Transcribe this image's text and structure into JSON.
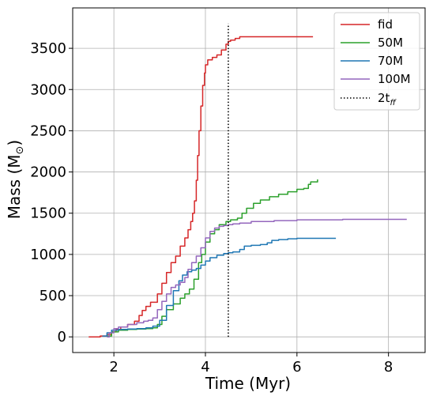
{
  "chart_data": {
    "type": "line",
    "xlabel": "Time (Myr)",
    "ylabel_main": "Mass (M",
    "ylabel_sub": "⊙",
    "ylabel_end": ")",
    "xlim": [
      1.1,
      8.8
    ],
    "ylim": [
      -190,
      3990
    ],
    "xticks": [
      2,
      4,
      6,
      8
    ],
    "yticks": [
      0,
      500,
      1000,
      1500,
      2000,
      2500,
      3000,
      3500
    ],
    "grid": true,
    "legend_position": "top-right",
    "series": [
      {
        "name": "fid",
        "color": "#d62728",
        "x": [
          1.45,
          1.7,
          1.85,
          1.95,
          2.05,
          2.15,
          2.3,
          2.45,
          2.55,
          2.62,
          2.7,
          2.8,
          2.95,
          3.05,
          3.15,
          3.25,
          3.35,
          3.45,
          3.55,
          3.62,
          3.68,
          3.72,
          3.76,
          3.8,
          3.83,
          3.86,
          3.9,
          3.94,
          3.98,
          4.0,
          4.05,
          4.15,
          4.25,
          4.35,
          4.45,
          4.5,
          4.55,
          4.65,
          4.75,
          5.0,
          5.5,
          6.0,
          6.35
        ],
        "y": [
          0,
          10,
          30,
          60,
          90,
          120,
          150,
          190,
          260,
          320,
          370,
          420,
          520,
          650,
          780,
          900,
          980,
          1100,
          1200,
          1300,
          1400,
          1500,
          1650,
          1900,
          2200,
          2500,
          2800,
          3050,
          3200,
          3300,
          3360,
          3390,
          3420,
          3480,
          3550,
          3585,
          3600,
          3620,
          3640,
          3640,
          3640,
          3640,
          3640
        ]
      },
      {
        "name": "50M",
        "color": "#2ca02c",
        "x": [
          1.85,
          1.95,
          2.1,
          2.3,
          2.5,
          2.7,
          2.85,
          2.95,
          3.05,
          3.15,
          3.3,
          3.45,
          3.55,
          3.65,
          3.75,
          3.85,
          3.92,
          4.0,
          4.1,
          4.2,
          4.3,
          4.45,
          4.55,
          4.7,
          4.8,
          4.9,
          5.05,
          5.2,
          5.4,
          5.6,
          5.8,
          6.0,
          6.15,
          6.25,
          6.3,
          6.45
        ],
        "y": [
          10,
          60,
          80,
          90,
          95,
          100,
          110,
          150,
          250,
          330,
          400,
          470,
          520,
          580,
          700,
          900,
          1000,
          1150,
          1250,
          1300,
          1360,
          1400,
          1420,
          1440,
          1500,
          1560,
          1620,
          1660,
          1700,
          1730,
          1760,
          1790,
          1800,
          1850,
          1880,
          1910
        ]
      },
      {
        "name": "70M",
        "color": "#1f77b4",
        "x": [
          1.75,
          1.85,
          1.95,
          2.1,
          2.3,
          2.5,
          2.7,
          2.85,
          3.0,
          3.15,
          3.3,
          3.42,
          3.5,
          3.6,
          3.7,
          3.8,
          3.9,
          4.0,
          4.1,
          4.25,
          4.4,
          4.5,
          4.6,
          4.75,
          4.85,
          5.0,
          5.2,
          5.35,
          5.45,
          5.6,
          5.8,
          6.0,
          6.3,
          6.6,
          6.85
        ],
        "y": [
          10,
          50,
          80,
          90,
          95,
          100,
          110,
          130,
          200,
          380,
          560,
          680,
          750,
          790,
          810,
          830,
          870,
          920,
          960,
          990,
          1010,
          1020,
          1030,
          1060,
          1100,
          1110,
          1120,
          1140,
          1170,
          1180,
          1190,
          1195,
          1195,
          1195,
          1195
        ]
      },
      {
        "name": "100M",
        "color": "#9467bd",
        "x": [
          1.85,
          1.9,
          2.0,
          2.1,
          2.3,
          2.5,
          2.65,
          2.75,
          2.85,
          2.95,
          3.05,
          3.15,
          3.25,
          3.35,
          3.45,
          3.55,
          3.62,
          3.7,
          3.8,
          3.9,
          4.0,
          4.1,
          4.2,
          4.3,
          4.4,
          4.5,
          4.6,
          4.75,
          5.0,
          5.5,
          6.0,
          6.5,
          7.0,
          7.5,
          8.0,
          8.4
        ],
        "y": [
          0,
          50,
          100,
          120,
          150,
          170,
          190,
          200,
          230,
          330,
          430,
          520,
          600,
          630,
          660,
          720,
          820,
          900,
          980,
          1080,
          1200,
          1280,
          1320,
          1340,
          1350,
          1360,
          1370,
          1380,
          1400,
          1410,
          1420,
          1420,
          1425,
          1425,
          1425,
          1425
        ]
      }
    ],
    "annotations": [
      {
        "name": "2t",
        "subscript": "ff",
        "type": "vline",
        "x": 4.5,
        "y_range": [
          0,
          3800
        ],
        "color": "#000000",
        "style": "dotted"
      }
    ]
  }
}
